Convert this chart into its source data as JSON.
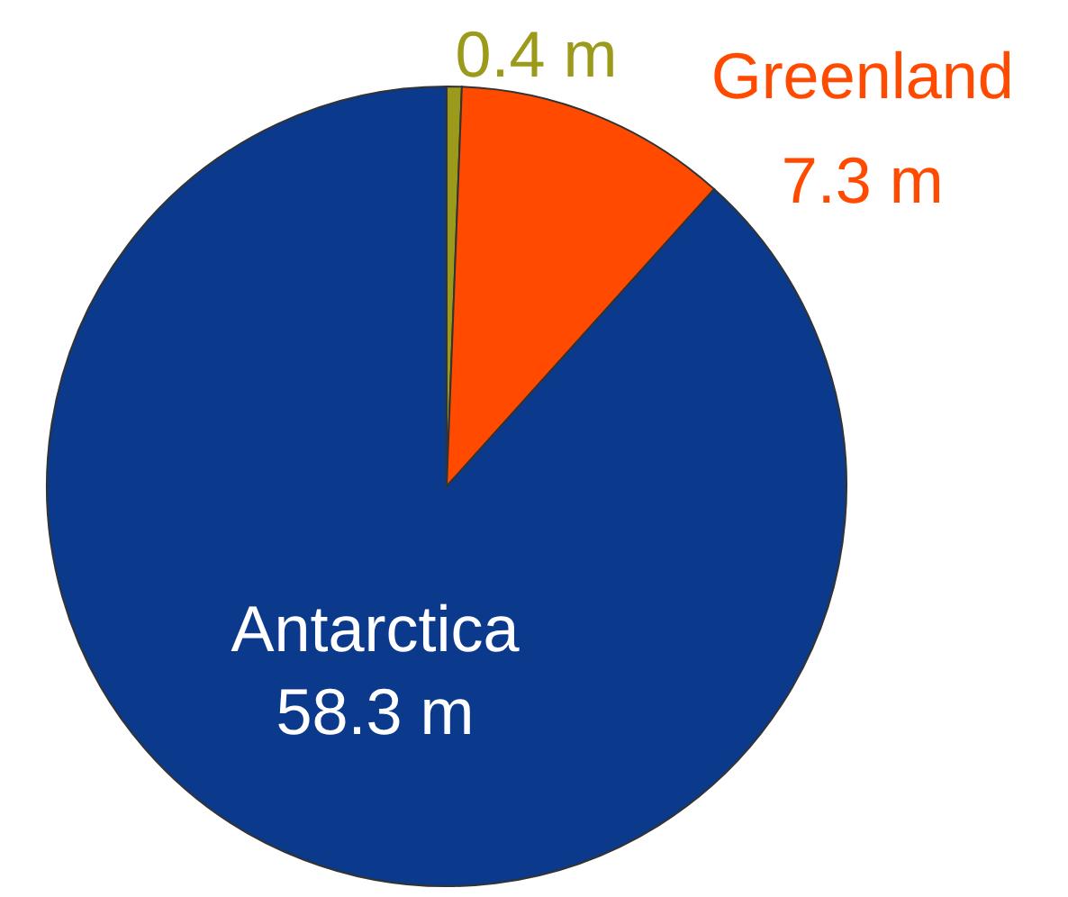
{
  "chart_data": {
    "type": "pie",
    "categories": [
      null,
      "Greenland",
      "Antarctica"
    ],
    "values": [
      0.4,
      7.3,
      58.3
    ],
    "value_labels": [
      "0.4 m",
      "7.3 m",
      "58.3 m"
    ],
    "colors": [
      "#9c9a1a",
      "#ff4a00",
      "#0b3a8c"
    ]
  }
}
